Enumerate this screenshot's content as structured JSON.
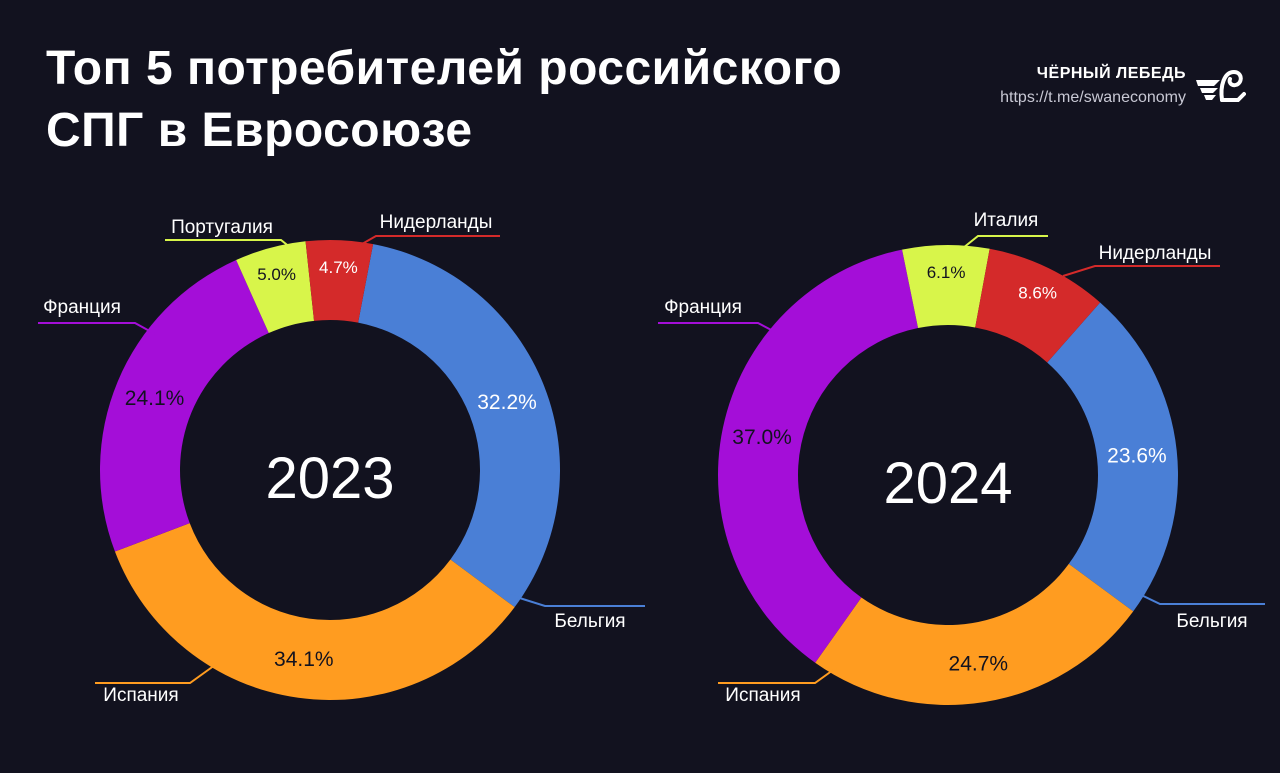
{
  "title_lines": [
    "Топ 5 потребителей российского",
    "СПГ в Евросоюзе"
  ],
  "brand": {
    "name": "ЧЁРНЫЙ ЛЕБЕДЬ",
    "url": "https://t.me/swaneconomy",
    "logo_icon": "swan-logo-icon"
  },
  "colors": {
    "background": "#12121f",
    "Бельгия": "#4a7fd6",
    "Испания": "#ff9c20",
    "Франция": "#a40ed8",
    "Португалия": "#d8f54a",
    "Италия": "#d8f54a",
    "Нидерланды": "#d42a2a"
  },
  "chart_data": [
    {
      "type": "pie",
      "center_label": "2023",
      "slices": [
        {
          "label": "Бельгия",
          "value": 32.2,
          "display": "32.2%"
        },
        {
          "label": "Испания",
          "value": 34.1,
          "display": "34.1%"
        },
        {
          "label": "Франция",
          "value": 24.1,
          "display": "24.1%"
        },
        {
          "label": "Португалия",
          "value": 5.0,
          "display": "5.0%"
        },
        {
          "label": "Нидерланды",
          "value": 4.7,
          "display": "4.7%"
        }
      ]
    },
    {
      "type": "pie",
      "center_label": "2024",
      "slices": [
        {
          "label": "Бельгия",
          "value": 23.6,
          "display": "23.6%"
        },
        {
          "label": "Испания",
          "value": 24.7,
          "display": "24.7%"
        },
        {
          "label": "Франция",
          "value": 37.0,
          "display": "37.0%"
        },
        {
          "label": "Италия",
          "value": 6.1,
          "display": "6.1%"
        },
        {
          "label": "Нидерланды",
          "value": 8.6,
          "display": "8.6%"
        }
      ]
    }
  ]
}
